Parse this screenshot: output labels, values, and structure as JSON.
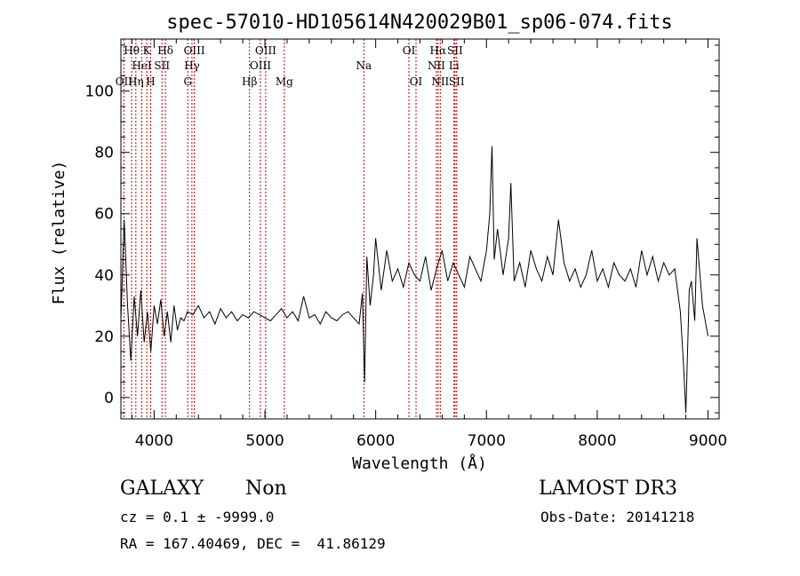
{
  "chart_data": {
    "type": "line",
    "title": "spec-57010-HD105614N420029B01_sp06-074.fits",
    "xlabel": "Wavelength (Å)",
    "ylabel": "Flux (relative)",
    "xlim": [
      3700,
      9100
    ],
    "ylim": [
      -7,
      117
    ],
    "xticks": [
      4000,
      5000,
      6000,
      7000,
      8000,
      9000
    ],
    "yticks": [
      0,
      20,
      40,
      60,
      80,
      100
    ],
    "series": [
      {
        "x": [
          3700,
          3730,
          3760,
          3790,
          3820,
          3850,
          3880,
          3910,
          3940,
          3970,
          4000,
          4030,
          4060,
          4090,
          4120,
          4150,
          4180,
          4210,
          4240,
          4270,
          4300,
          4350,
          4400,
          4450,
          4500,
          4550,
          4600,
          4650,
          4700,
          4750,
          4800,
          4850,
          4900,
          4950,
          5000,
          5050,
          5100,
          5150,
          5200,
          5250,
          5300,
          5350,
          5400,
          5450,
          5500,
          5550,
          5600,
          5650,
          5700,
          5750,
          5800,
          5850,
          5880,
          5900,
          5920,
          5950,
          5980,
          6000,
          6050,
          6100,
          6150,
          6200,
          6250,
          6300,
          6350,
          6400,
          6450,
          6500,
          6550,
          6600,
          6650,
          6700,
          6750,
          6800,
          6850,
          6900,
          6950,
          7000,
          7030,
          7050,
          7070,
          7100,
          7150,
          7200,
          7220,
          7250,
          7300,
          7350,
          7400,
          7450,
          7500,
          7550,
          7600,
          7650,
          7700,
          7750,
          7800,
          7850,
          7900,
          7950,
          8000,
          8050,
          8100,
          8150,
          8200,
          8250,
          8300,
          8350,
          8400,
          8450,
          8500,
          8550,
          8600,
          8650,
          8700,
          8750,
          8780,
          8800,
          8830,
          8850,
          8880,
          8900,
          8950,
          9000
        ],
        "y": [
          25,
          58,
          30,
          12,
          33,
          20,
          35,
          18,
          28,
          15,
          30,
          24,
          32,
          20,
          28,
          18,
          30,
          22,
          26,
          25,
          28,
          27,
          30,
          26,
          28,
          24,
          29,
          26,
          28,
          25,
          27,
          26,
          28,
          27,
          26,
          25,
          27,
          29,
          26,
          28,
          25,
          33,
          26,
          27,
          24,
          28,
          26,
          25,
          27,
          28,
          26,
          24,
          34,
          5,
          46,
          30,
          40,
          52,
          35,
          48,
          38,
          42,
          36,
          44,
          40,
          38,
          46,
          35,
          42,
          48,
          38,
          44,
          40,
          36,
          46,
          42,
          38,
          48,
          60,
          82,
          45,
          55,
          40,
          52,
          70,
          38,
          44,
          36,
          48,
          42,
          38,
          46,
          40,
          58,
          44,
          38,
          42,
          36,
          40,
          48,
          38,
          42,
          36,
          44,
          40,
          38,
          42,
          36,
          48,
          40,
          46,
          38,
          44,
          40,
          42,
          28,
          10,
          -5,
          35,
          38,
          25,
          52,
          30,
          20
        ]
      }
    ],
    "line_markers": [
      {
        "w": 3727,
        "label": "OII",
        "row": 3
      },
      {
        "w": 3797,
        "label": "Hθ",
        "row": 1
      },
      {
        "w": 3835,
        "label": "Hη",
        "row": 3
      },
      {
        "w": 3889,
        "label": "HeI",
        "row": 2
      },
      {
        "w": 3934,
        "label": "K",
        "row": 1
      },
      {
        "w": 3969,
        "label": "H",
        "row": 3
      },
      {
        "w": 4071,
        "label": "SII",
        "row": 2
      },
      {
        "w": 4102,
        "label": "Hδ",
        "row": 1
      },
      {
        "w": 4304,
        "label": "G",
        "row": 3
      },
      {
        "w": 4341,
        "label": "Hγ",
        "row": 2
      },
      {
        "w": 4363,
        "label": "OIII",
        "row": 1
      },
      {
        "w": 4861,
        "label": "Hβ",
        "row": 3
      },
      {
        "w": 4959,
        "label": "OIII",
        "row": 2
      },
      {
        "w": 5007,
        "label": "OIII",
        "row": 1
      },
      {
        "w": 5175,
        "label": "Mg",
        "row": 3
      },
      {
        "w": 5893,
        "label": "Na",
        "row": 2
      },
      {
        "w": 6300,
        "label": "OI",
        "row": 1
      },
      {
        "w": 6364,
        "label": "OI",
        "row": 3
      },
      {
        "w": 6548,
        "label": "NII",
        "row": 2
      },
      {
        "w": 6563,
        "label": "Hα",
        "row": 1
      },
      {
        "w": 6583,
        "label": "NII",
        "row": 3
      },
      {
        "w": 6707,
        "label": "Li",
        "row": 2
      },
      {
        "w": 6716,
        "label": "SII",
        "row": 1
      },
      {
        "w": 6731,
        "label": "SII",
        "row": 3
      }
    ],
    "grid": false
  },
  "info": {
    "class": "GALAXY",
    "subclass": "Non",
    "survey": "LAMOST DR3",
    "cz": "cz = 0.1 ± -9999.0",
    "obs_date": "Obs-Date: 20141218",
    "coords": "RA = 167.40469, DEC =  41.86129"
  },
  "colors": {
    "line_marker": "#c00000",
    "spectrum": "#000000"
  }
}
